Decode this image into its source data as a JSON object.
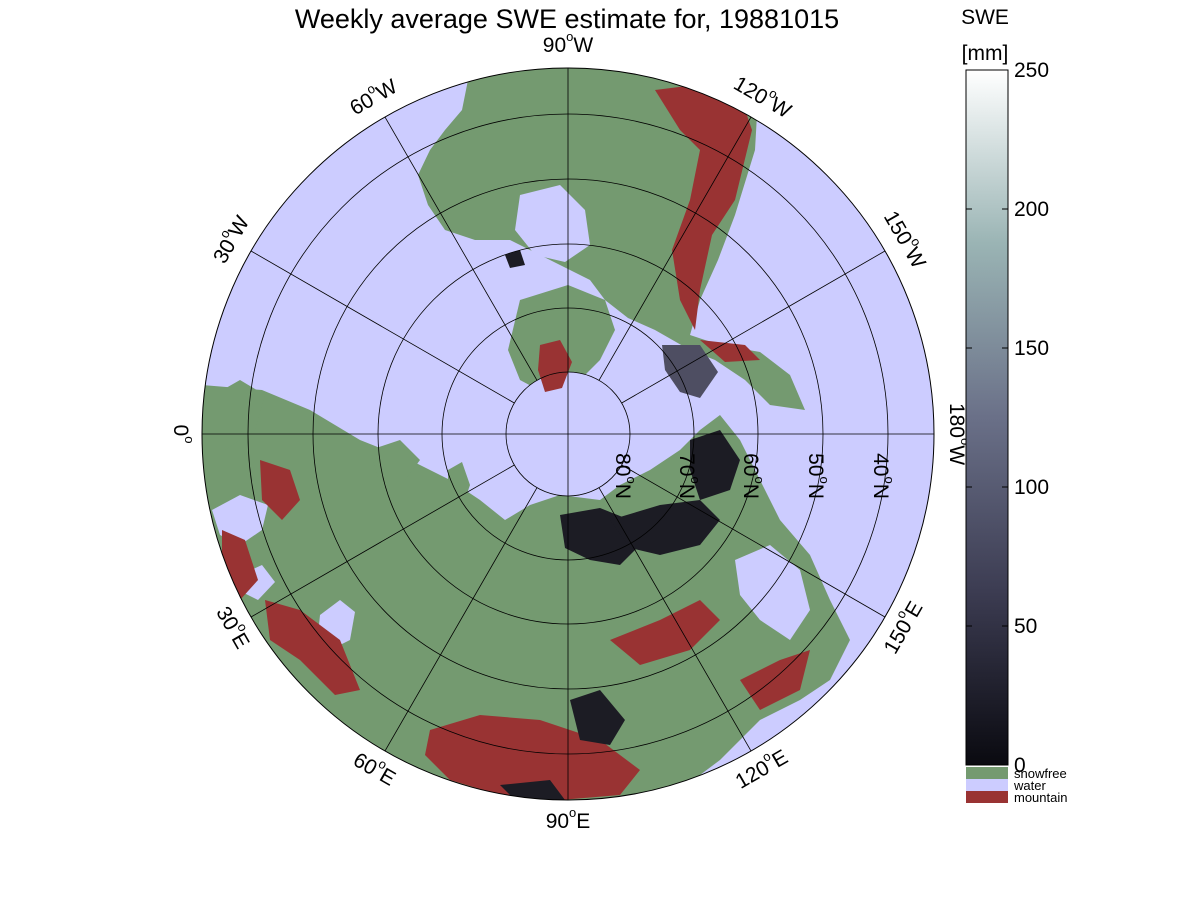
{
  "title": "Weekly average SWE estimate for, 19881015",
  "projection": "north polar stereographic",
  "colors": {
    "water": "#ccccff",
    "snowfree": "#749a70",
    "mountain": "#993333",
    "gridline": "#000000",
    "swe_low": "#0a0a10",
    "swe_mid": "#8a9aa6",
    "swe_high": "#ffffff"
  },
  "meridian_labels": [
    {
      "lon": "90",
      "dir": "W"
    },
    {
      "lon": "60",
      "dir": "W"
    },
    {
      "lon": "30",
      "dir": "W"
    },
    {
      "lon": "0",
      "dir": ""
    },
    {
      "lon": "30",
      "dir": "E"
    },
    {
      "lon": "60",
      "dir": "E"
    },
    {
      "lon": "90",
      "dir": "E"
    },
    {
      "lon": "120",
      "dir": "E"
    },
    {
      "lon": "150",
      "dir": "E"
    },
    {
      "lon": "180",
      "dir": "W"
    },
    {
      "lon": "150",
      "dir": "W"
    },
    {
      "lon": "120",
      "dir": "W"
    }
  ],
  "parallel_labels": [
    "80",
    "70",
    "60",
    "50",
    "40"
  ],
  "parallel_suffix": "N",
  "colorbar": {
    "title_line1": "SWE",
    "title_line2": "[mm]",
    "ticks": [
      "0",
      "50",
      "100",
      "150",
      "200",
      "250"
    ],
    "range": [
      0,
      250
    ],
    "categories": [
      {
        "label": "snowfree",
        "color": "#749a70"
      },
      {
        "label": "water",
        "color": "#ccccff"
      },
      {
        "label": "mountain",
        "color": "#993333"
      }
    ]
  }
}
